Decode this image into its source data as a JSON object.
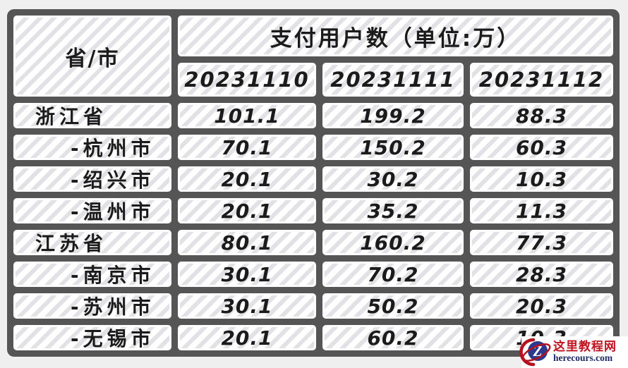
{
  "page": {
    "background": "#f0eff0"
  },
  "table": {
    "corner_header": "省/市",
    "group_header": "支付用户数（单位:万）",
    "border_color": "#555555",
    "cell_stripe_color": "#e2e2e6",
    "text_color": "#1b1b1b"
  },
  "chart_data": {
    "type": "table",
    "title": "支付用户数（单位:万）",
    "row_header_label": "省/市",
    "columns": [
      "20231110",
      "20231111",
      "20231112"
    ],
    "rows": [
      {
        "label": "浙江省",
        "level": "province",
        "values": [
          101.1,
          199.2,
          88.3
        ]
      },
      {
        "label": "-杭州市",
        "level": "city",
        "values": [
          70.1,
          150.2,
          60.3
        ]
      },
      {
        "label": "-绍兴市",
        "level": "city",
        "values": [
          20.1,
          30.2,
          10.3
        ]
      },
      {
        "label": "-温州市",
        "level": "city",
        "values": [
          20.1,
          35.2,
          11.3
        ]
      },
      {
        "label": "江苏省",
        "level": "province",
        "values": [
          80.1,
          160.2,
          77.3
        ]
      },
      {
        "label": "-南京市",
        "level": "city",
        "values": [
          30.1,
          70.2,
          28.3
        ]
      },
      {
        "label": "-苏州市",
        "level": "city",
        "values": [
          30.1,
          50.2,
          20.3
        ]
      },
      {
        "label": "-无锡市",
        "level": "city",
        "values": [
          20.1,
          60.2,
          10.3
        ]
      }
    ]
  },
  "watermark": {
    "site_name": "这里教程网",
    "site_url": "herecours.com",
    "logo_letter": "Z",
    "name_color": "#c1121f",
    "url_color": "#1c2a66",
    "logo_circle_color": "#2b3a8c",
    "logo_swoosh_color": "#b5121f"
  }
}
